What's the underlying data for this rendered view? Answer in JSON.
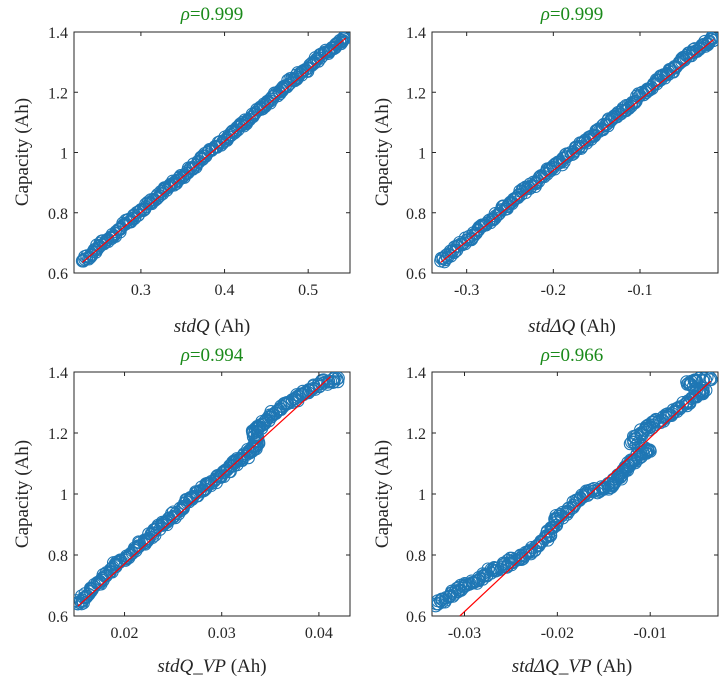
{
  "colors": {
    "points": "#1f77b4",
    "fit_line": "#ff0000",
    "title": "#1a8a1a",
    "axes": "#262626"
  },
  "chart_data": [
    {
      "type": "scatter",
      "title_symbol": "ρ",
      "title_value": "=0.999",
      "ylabel": "Capacity (Ah)",
      "xlabel_italic": "stdQ",
      "xlabel_unit": " (Ah)",
      "xlim": [
        0.22,
        0.55
      ],
      "ylim": [
        0.6,
        1.4
      ],
      "xticks": [
        0.3,
        0.4,
        0.5
      ],
      "xtick_labels": [
        "0.3",
        "0.4",
        "0.5"
      ],
      "yticks": [
        0.6,
        0.8,
        1.0,
        1.2,
        1.4
      ],
      "ytick_labels": [
        "0.6",
        "0.8",
        "1",
        "1.2",
        "1.4"
      ],
      "fit_line": {
        "x": [
          0.23,
          0.545
        ],
        "y": [
          0.635,
          1.38
        ]
      },
      "points": [
        [
          0.23,
          0.64
        ],
        [
          0.24,
          0.66
        ],
        [
          0.25,
          0.69
        ],
        [
          0.26,
          0.71
        ],
        [
          0.27,
          0.73
        ],
        [
          0.28,
          0.76
        ],
        [
          0.29,
          0.78
        ],
        [
          0.3,
          0.81
        ],
        [
          0.31,
          0.83
        ],
        [
          0.32,
          0.85
        ],
        [
          0.33,
          0.88
        ],
        [
          0.34,
          0.9
        ],
        [
          0.35,
          0.92
        ],
        [
          0.36,
          0.95
        ],
        [
          0.37,
          0.97
        ],
        [
          0.38,
          1.0
        ],
        [
          0.39,
          1.02
        ],
        [
          0.4,
          1.04
        ],
        [
          0.41,
          1.07
        ],
        [
          0.42,
          1.09
        ],
        [
          0.43,
          1.11
        ],
        [
          0.44,
          1.14
        ],
        [
          0.45,
          1.16
        ],
        [
          0.46,
          1.19
        ],
        [
          0.47,
          1.21
        ],
        [
          0.48,
          1.24
        ],
        [
          0.49,
          1.26
        ],
        [
          0.5,
          1.28
        ],
        [
          0.51,
          1.31
        ],
        [
          0.52,
          1.33
        ],
        [
          0.53,
          1.35
        ],
        [
          0.54,
          1.37
        ],
        [
          0.545,
          1.38
        ]
      ]
    },
    {
      "type": "scatter",
      "title_symbol": "ρ",
      "title_value": "=0.999",
      "ylabel": "Capacity (Ah)",
      "xlabel_italic": "stdΔQ",
      "xlabel_unit": " (Ah)",
      "xlim": [
        -0.34,
        -0.01
      ],
      "ylim": [
        0.6,
        1.4
      ],
      "xticks": [
        -0.3,
        -0.2,
        -0.1
      ],
      "xtick_labels": [
        "-0.3",
        "-0.2",
        "-0.1"
      ],
      "yticks": [
        0.6,
        0.8,
        1.0,
        1.2,
        1.4
      ],
      "ytick_labels": [
        "0.6",
        "0.8",
        "1",
        "1.2",
        "1.4"
      ],
      "fit_line": {
        "x": [
          -0.33,
          -0.015
        ],
        "y": [
          0.635,
          1.375
        ]
      },
      "points": [
        [
          -0.33,
          0.64
        ],
        [
          -0.32,
          0.66
        ],
        [
          -0.31,
          0.69
        ],
        [
          -0.3,
          0.71
        ],
        [
          -0.29,
          0.73
        ],
        [
          -0.28,
          0.76
        ],
        [
          -0.27,
          0.78
        ],
        [
          -0.26,
          0.81
        ],
        [
          -0.25,
          0.83
        ],
        [
          -0.24,
          0.86
        ],
        [
          -0.23,
          0.88
        ],
        [
          -0.22,
          0.9
        ],
        [
          -0.21,
          0.93
        ],
        [
          -0.2,
          0.95
        ],
        [
          -0.19,
          0.97
        ],
        [
          -0.18,
          1.0
        ],
        [
          -0.17,
          1.02
        ],
        [
          -0.16,
          1.04
        ],
        [
          -0.15,
          1.07
        ],
        [
          -0.14,
          1.09
        ],
        [
          -0.13,
          1.12
        ],
        [
          -0.12,
          1.14
        ],
        [
          -0.11,
          1.16
        ],
        [
          -0.1,
          1.19
        ],
        [
          -0.09,
          1.21
        ],
        [
          -0.08,
          1.24
        ],
        [
          -0.07,
          1.26
        ],
        [
          -0.06,
          1.28
        ],
        [
          -0.05,
          1.31
        ],
        [
          -0.04,
          1.33
        ],
        [
          -0.03,
          1.35
        ],
        [
          -0.02,
          1.37
        ],
        [
          -0.015,
          1.38
        ]
      ]
    },
    {
      "type": "scatter",
      "title_symbol": "ρ",
      "title_value": "=0.994",
      "ylabel": "Capacity (Ah)",
      "xlabel_italic": "stdQ_VP",
      "xlabel_unit": " (Ah)",
      "xlim": [
        0.0148,
        0.0432
      ],
      "ylim": [
        0.6,
        1.4
      ],
      "xticks": [
        0.02,
        0.03,
        0.04
      ],
      "xtick_labels": [
        "0.02",
        "0.03",
        "0.04"
      ],
      "yticks": [
        0.6,
        0.8,
        1.0,
        1.2,
        1.4
      ],
      "ytick_labels": [
        "0.6",
        "0.8",
        "1",
        "1.2",
        "1.4"
      ],
      "fit_line": {
        "x": [
          0.0152,
          0.0412
        ],
        "y": [
          0.632,
          1.385
        ]
      },
      "points": [
        [
          0.0152,
          0.64
        ],
        [
          0.0158,
          0.66
        ],
        [
          0.0165,
          0.68
        ],
        [
          0.0172,
          0.71
        ],
        [
          0.018,
          0.73
        ],
        [
          0.0188,
          0.76
        ],
        [
          0.0196,
          0.78
        ],
        [
          0.0205,
          0.8
        ],
        [
          0.0214,
          0.83
        ],
        [
          0.0222,
          0.85
        ],
        [
          0.023,
          0.87
        ],
        [
          0.0238,
          0.9
        ],
        [
          0.0246,
          0.92
        ],
        [
          0.0254,
          0.94
        ],
        [
          0.0262,
          0.97
        ],
        [
          0.027,
          0.99
        ],
        [
          0.0278,
          1.01
        ],
        [
          0.0286,
          1.03
        ],
        [
          0.0294,
          1.05
        ],
        [
          0.0302,
          1.07
        ],
        [
          0.031,
          1.09
        ],
        [
          0.0318,
          1.11
        ],
        [
          0.0326,
          1.13
        ],
        [
          0.0332,
          1.15
        ],
        [
          0.0338,
          1.17
        ],
        [
          0.0332,
          1.2
        ],
        [
          0.0338,
          1.22
        ],
        [
          0.0345,
          1.24
        ],
        [
          0.0352,
          1.26
        ],
        [
          0.036,
          1.28
        ],
        [
          0.037,
          1.3
        ],
        [
          0.038,
          1.32
        ],
        [
          0.039,
          1.34
        ],
        [
          0.04,
          1.36
        ],
        [
          0.041,
          1.37
        ],
        [
          0.042,
          1.38
        ]
      ]
    },
    {
      "type": "scatter",
      "title_symbol": "ρ",
      "title_value": "=0.966",
      "ylabel": "Capacity (Ah)",
      "xlabel_italic": "stdΔQ_VP",
      "xlabel_unit": " (Ah)",
      "xlim": [
        -0.0335,
        -0.0027
      ],
      "ylim": [
        0.6,
        1.4
      ],
      "xticks": [
        -0.03,
        -0.02,
        -0.01
      ],
      "xtick_labels": [
        "-0.03",
        "-0.02",
        "-0.01"
      ],
      "yticks": [
        0.6,
        0.8,
        1.0,
        1.2,
        1.4
      ],
      "ytick_labels": [
        "0.6",
        "0.8",
        "1",
        "1.2",
        "1.4"
      ],
      "fit_line": {
        "x": [
          -0.0305,
          -0.0035
        ],
        "y": [
          0.6,
          1.37
        ]
      },
      "points": [
        [
          -0.033,
          0.64
        ],
        [
          -0.032,
          0.66
        ],
        [
          -0.031,
          0.68
        ],
        [
          -0.03,
          0.7
        ],
        [
          -0.029,
          0.71
        ],
        [
          -0.028,
          0.73
        ],
        [
          -0.027,
          0.75
        ],
        [
          -0.026,
          0.76
        ],
        [
          -0.025,
          0.78
        ],
        [
          -0.024,
          0.79
        ],
        [
          -0.023,
          0.81
        ],
        [
          -0.022,
          0.83
        ],
        [
          -0.021,
          0.86
        ],
        [
          -0.0205,
          0.89
        ],
        [
          -0.02,
          0.92
        ],
        [
          -0.019,
          0.94
        ],
        [
          -0.018,
          0.97
        ],
        [
          -0.017,
          1.0
        ],
        [
          -0.016,
          1.01
        ],
        [
          -0.015,
          1.02
        ],
        [
          -0.014,
          1.03
        ],
        [
          -0.0135,
          1.05
        ],
        [
          -0.013,
          1.07
        ],
        [
          -0.0125,
          1.09
        ],
        [
          -0.0118,
          1.11
        ],
        [
          -0.011,
          1.13
        ],
        [
          -0.01,
          1.14
        ],
        [
          -0.012,
          1.17
        ],
        [
          -0.011,
          1.2
        ],
        [
          -0.01,
          1.22
        ],
        [
          -0.009,
          1.24
        ],
        [
          -0.008,
          1.26
        ],
        [
          -0.007,
          1.28
        ],
        [
          -0.006,
          1.3
        ],
        [
          -0.005,
          1.32
        ],
        [
          -0.004,
          1.34
        ],
        [
          -0.006,
          1.36
        ],
        [
          -0.005,
          1.37
        ],
        [
          -0.0035,
          1.38
        ]
      ]
    }
  ]
}
